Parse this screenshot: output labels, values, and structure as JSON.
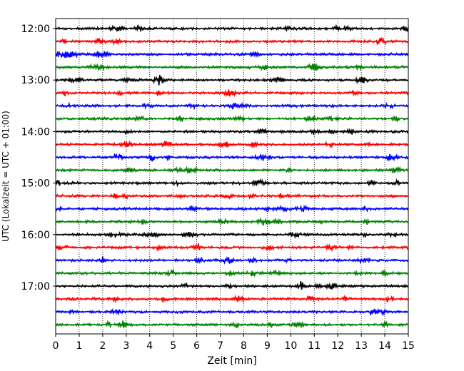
{
  "chart_data": {
    "type": "line",
    "title": "",
    "xlabel": "Zeit  [min]",
    "ylabel": "UTC (Lokalzeit = UTC + 01:00)",
    "xlim": [
      0,
      15
    ],
    "xticks": [
      0,
      1,
      2,
      3,
      4,
      5,
      6,
      7,
      8,
      9,
      10,
      11,
      12,
      13,
      14,
      15
    ],
    "xtick_labels": [
      "0",
      "1",
      "2",
      "3",
      "4",
      "5",
      "6",
      "7",
      "8",
      "9",
      "10",
      "11",
      "12",
      "13",
      "14",
      "15"
    ],
    "ytick_labels": [
      "12:00",
      "13:00",
      "14:00",
      "15:00",
      "16:00",
      "17:00"
    ],
    "ytick_hours": [
      12,
      13,
      14,
      15,
      16,
      17
    ],
    "trace_interval_minutes": 15,
    "grid": {
      "x": "dotted vertical",
      "y": "none"
    },
    "colors": [
      "#000000",
      "#ff0000",
      "#0000ff",
      "#008000"
    ],
    "traces": [
      {
        "start": "12:00",
        "color": "#000000"
      },
      {
        "start": "12:15",
        "color": "#ff0000"
      },
      {
        "start": "12:30",
        "color": "#0000ff"
      },
      {
        "start": "12:45",
        "color": "#008000"
      },
      {
        "start": "13:00",
        "color": "#000000"
      },
      {
        "start": "13:15",
        "color": "#ff0000"
      },
      {
        "start": "13:30",
        "color": "#0000ff"
      },
      {
        "start": "13:45",
        "color": "#008000"
      },
      {
        "start": "14:00",
        "color": "#000000"
      },
      {
        "start": "14:15",
        "color": "#ff0000"
      },
      {
        "start": "14:30",
        "color": "#0000ff"
      },
      {
        "start": "14:45",
        "color": "#008000"
      },
      {
        "start": "15:00",
        "color": "#000000"
      },
      {
        "start": "15:15",
        "color": "#ff0000"
      },
      {
        "start": "15:30",
        "color": "#0000ff"
      },
      {
        "start": "15:45",
        "color": "#008000"
      },
      {
        "start": "16:00",
        "color": "#000000"
      },
      {
        "start": "16:15",
        "color": "#ff0000"
      },
      {
        "start": "16:30",
        "color": "#0000ff"
      },
      {
        "start": "16:45",
        "color": "#008000"
      },
      {
        "start": "17:00",
        "color": "#000000"
      },
      {
        "start": "17:15",
        "color": "#ff0000"
      },
      {
        "start": "17:30",
        "color": "#0000ff"
      },
      {
        "start": "17:45",
        "color": "#008000"
      }
    ]
  }
}
